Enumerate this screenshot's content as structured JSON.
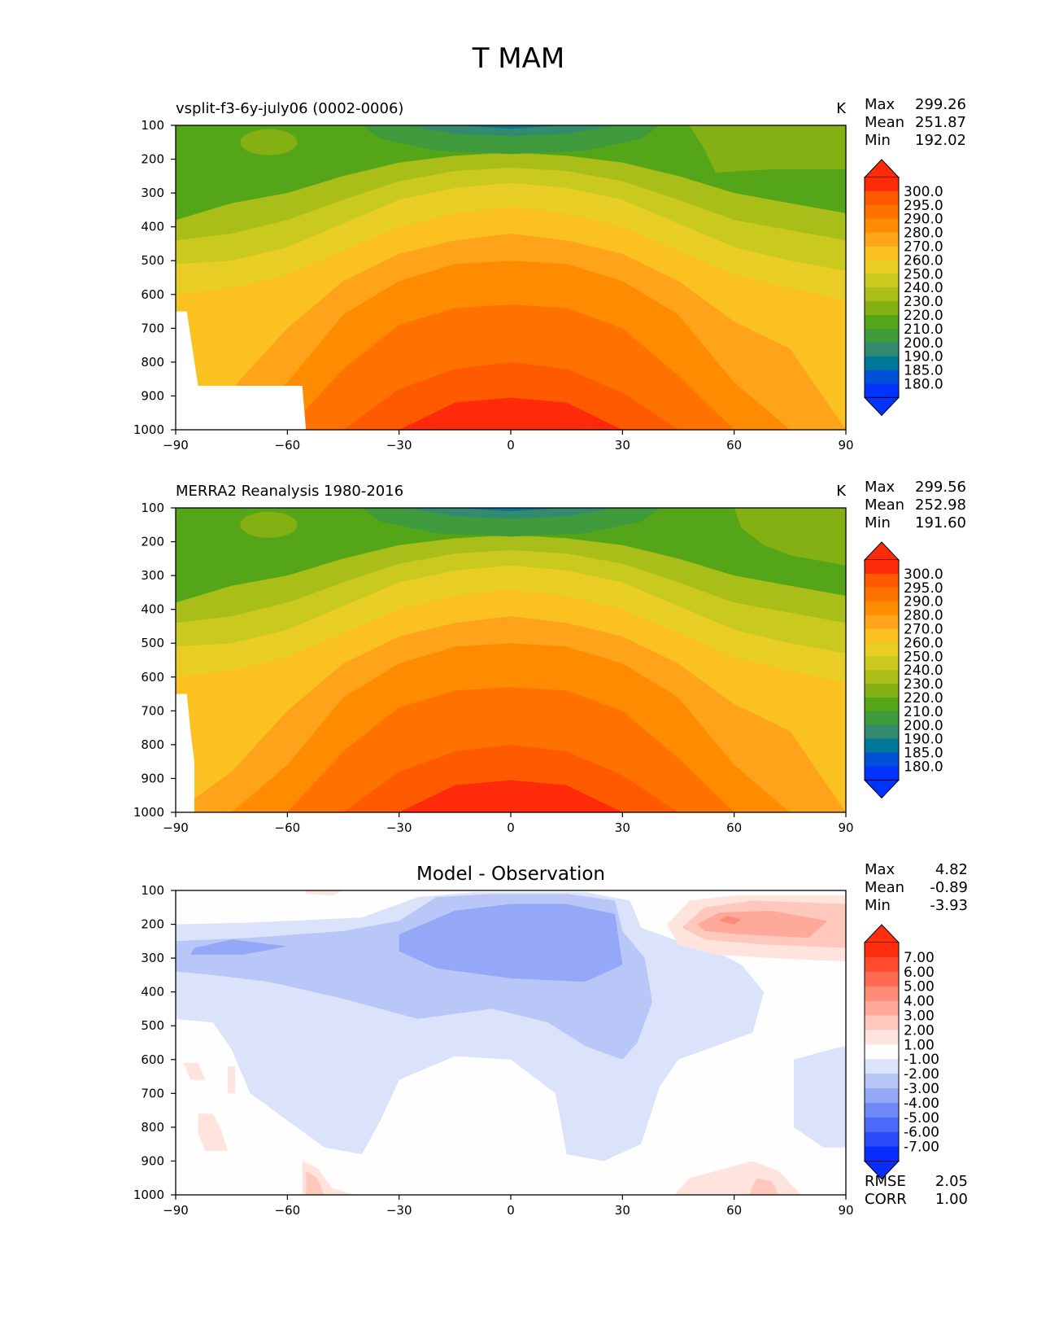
{
  "title": "T MAM",
  "chart_data": [
    {
      "type": "heatmap",
      "subtitle": "vsplit-f3-6y-july06 (0002-0006)",
      "units": "K",
      "xlim": [
        -90,
        90
      ],
      "ylim": [
        1000,
        100
      ],
      "x_ticks": [
        "−90",
        "−60",
        "−30",
        "0",
        "30",
        "60",
        "90"
      ],
      "y_ticks": [
        "100",
        "200",
        "300",
        "400",
        "500",
        "600",
        "700",
        "800",
        "900",
        "1000"
      ],
      "stats": {
        "max_label": "Max",
        "max": "299.26",
        "mean_label": "Mean",
        "mean": "251.87",
        "min_label": "Min",
        "min": "192.02"
      },
      "colorbar": {
        "labels": [
          "300.0",
          "295.0",
          "290.0",
          "280.0",
          "270.0",
          "260.0",
          "250.0",
          "240.0",
          "230.0",
          "220.0",
          "210.0",
          "200.0",
          "190.0",
          "185.0",
          "180.0"
        ],
        "colors": [
          "#ff2a0a",
          "#ff5a00",
          "#ff7200",
          "#ff8c00",
          "#ffa41a",
          "#fbc120",
          "#e8cd24",
          "#c9c91e",
          "#a9be18",
          "#84b014",
          "#54a518",
          "#3e9a3a",
          "#348a6e",
          "#00789a",
          "#0050d8",
          "#0033ff"
        ]
      },
      "field": "model"
    },
    {
      "type": "heatmap",
      "subtitle": "MERRA2 Reanalysis 1980-2016",
      "units": "K",
      "xlim": [
        -90,
        90
      ],
      "ylim": [
        1000,
        100
      ],
      "x_ticks": [
        "−90",
        "−60",
        "−30",
        "0",
        "30",
        "60",
        "90"
      ],
      "y_ticks": [
        "100",
        "200",
        "300",
        "400",
        "500",
        "600",
        "700",
        "800",
        "900",
        "1000"
      ],
      "stats": {
        "max_label": "Max",
        "max": "299.56",
        "mean_label": "Mean",
        "mean": "252.98",
        "min_label": "Min",
        "min": "191.60"
      },
      "colorbar": {
        "labels": [
          "300.0",
          "295.0",
          "290.0",
          "280.0",
          "270.0",
          "260.0",
          "250.0",
          "240.0",
          "230.0",
          "220.0",
          "210.0",
          "200.0",
          "190.0",
          "185.0",
          "180.0"
        ],
        "colors": [
          "#ff2a0a",
          "#ff5a00",
          "#ff7200",
          "#ff8c00",
          "#ffa41a",
          "#fbc120",
          "#e8cd24",
          "#c9c91e",
          "#a9be18",
          "#84b014",
          "#54a518",
          "#3e9a3a",
          "#348a6e",
          "#00789a",
          "#0050d8",
          "#0033ff"
        ]
      },
      "field": "obs"
    },
    {
      "type": "heatmap",
      "subtitle": "Model - Observation",
      "units": "",
      "xlim": [
        -90,
        90
      ],
      "ylim": [
        1000,
        100
      ],
      "x_ticks": [
        "−90",
        "−60",
        "−30",
        "0",
        "30",
        "60",
        "90"
      ],
      "y_ticks": [
        "100",
        "200",
        "300",
        "400",
        "500",
        "600",
        "700",
        "800",
        "900",
        "1000"
      ],
      "stats": {
        "max_label": "Max",
        "max": "4.82",
        "mean_label": "Mean",
        "mean": "-0.89",
        "min_label": "Min",
        "min": "-3.93"
      },
      "extra_stats": {
        "rmse_label": "RMSE",
        "rmse": "2.05",
        "corr_label": "CORR",
        "corr": "1.00"
      },
      "colorbar": {
        "labels": [
          "7.00",
          "6.00",
          "5.00",
          "4.00",
          "3.00",
          "2.00",
          "1.00",
          "-1.00",
          "-2.00",
          "-3.00",
          "-4.00",
          "-5.00",
          "-6.00",
          "-7.00"
        ],
        "colors": [
          "#ff2e0e",
          "#ff4a30",
          "#ff6a55",
          "#ff8a78",
          "#ffa99a",
          "#ffc8bd",
          "#ffe4de",
          "#fefefe",
          "#dbe3fb",
          "#b8c6f8",
          "#94a8f7",
          "#6f8af6",
          "#4c6bf8",
          "#2a4cfb",
          "#0a2cff"
        ]
      },
      "field": "diff"
    }
  ]
}
